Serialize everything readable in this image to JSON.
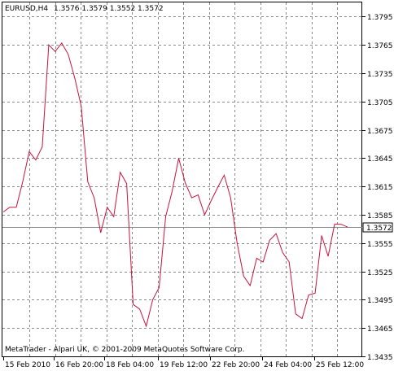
{
  "header": {
    "symbol_timeframe": "EURUSD,H4",
    "ohlc": "1.3576 1.3579 1.3552 1.3572"
  },
  "footer": {
    "copyright": "MetaTrader - Alpari UK, © 2001-2009 MetaQuotes Software Corp."
  },
  "colors": {
    "series": "#c8143c",
    "grid": "#8a8a8a",
    "axis": "#000000",
    "price_line": "#8a8a8a",
    "price_badge_bg": "#ffffff"
  },
  "chart_data": {
    "type": "line",
    "ylim": [
      1.3435,
      1.381
    ],
    "y_ticks": [
      "1.3795",
      "1.3765",
      "1.3735",
      "1.3705",
      "1.3675",
      "1.3645",
      "1.3615",
      "1.3585",
      "1.3555",
      "1.3525",
      "1.3495",
      "1.3465",
      "1.3435"
    ],
    "x_ticks": [
      "15 Feb 2010",
      "16 Feb 20:00",
      "18 Feb 04:00",
      "19 Feb 12:00",
      "22 Feb 20:00",
      "24 Feb 04:00",
      "25 Feb 12:00"
    ],
    "current_price": "1.3572",
    "grid": true,
    "series": [
      {
        "values": [
          1.3588,
          1.3593,
          1.3593,
          1.362,
          1.3652,
          1.3643,
          1.3657,
          1.3765,
          1.3758,
          1.3767,
          1.3755,
          1.373,
          1.37,
          1.362,
          1.3603,
          1.3566,
          1.3593,
          1.3583,
          1.363,
          1.3618,
          1.349,
          1.3485,
          1.3467,
          1.3495,
          1.3508,
          1.3583,
          1.361,
          1.3645,
          1.3619,
          1.3603,
          1.3606,
          1.3585,
          1.36,
          1.3614,
          1.3627,
          1.3603,
          1.3555,
          1.352,
          1.351,
          1.3539,
          1.3535,
          1.3558,
          1.3565,
          1.3545,
          1.3535,
          1.348,
          1.3475,
          1.35,
          1.3502,
          1.3563,
          1.3541,
          1.3575,
          1.3575,
          1.3572
        ]
      }
    ]
  }
}
